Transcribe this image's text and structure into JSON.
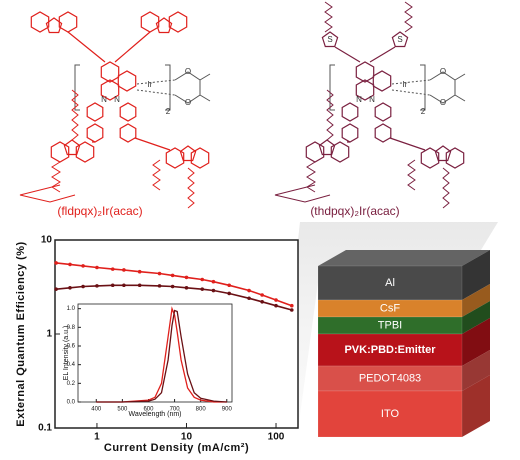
{
  "molecules": [
    {
      "name": "(fldpqx)₂Ir(acac)",
      "color": "#e0201c",
      "atoms": [
        "N",
        "N",
        "Ir",
        "O",
        "O",
        "2"
      ]
    },
    {
      "name": "(thdpqx)₂Ir(acac)",
      "color": "#7a2040",
      "atoms": [
        "N",
        "N",
        "Ir",
        "O",
        "O",
        "2",
        "S",
        "S"
      ]
    }
  ],
  "chart_data": [
    {
      "type": "line",
      "xlabel": "Current Density (mA/cm²)",
      "ylabel": "External Quantum Efficiency (%)",
      "xscale": "log",
      "yscale": "log",
      "xlim": [
        0.34,
        176
      ],
      "ylim": [
        0.1,
        10
      ],
      "xticks": [
        1,
        10,
        100
      ],
      "yticks": [
        0.1,
        1,
        10
      ],
      "markers": true,
      "x": [
        0.35,
        0.5,
        0.7,
        1,
        1.5,
        2,
        3,
        5,
        7,
        10,
        15,
        20,
        30,
        50,
        70,
        100,
        150
      ],
      "series": [
        {
          "color": "#e0201c",
          "values": [
            5.7,
            5.5,
            5.3,
            5.1,
            4.9,
            4.8,
            4.6,
            4.4,
            4.2,
            4.0,
            3.8,
            3.6,
            3.3,
            2.9,
            2.6,
            2.3,
            2.0
          ]
        },
        {
          "color": "#6a1014",
          "values": [
            3.0,
            3.1,
            3.2,
            3.25,
            3.3,
            3.3,
            3.3,
            3.25,
            3.2,
            3.1,
            3.0,
            2.9,
            2.7,
            2.4,
            2.2,
            2.0,
            1.8
          ]
        }
      ]
    },
    {
      "type": "line",
      "xlabel": "Wavelength (nm)",
      "ylabel": "EL Intensity (a.u.)",
      "xlim": [
        330,
        920
      ],
      "ylim": [
        0,
        1.05
      ],
      "xticks": [
        400,
        500,
        600,
        700,
        800,
        900
      ],
      "yticks": [
        {
          "value": 0,
          "label": "0.0"
        },
        {
          "value": 0.2,
          "label": "0.2"
        },
        {
          "value": 0.4,
          "label": "0.4"
        },
        {
          "value": 0.6,
          "label": "0.6"
        },
        {
          "value": 0.8,
          "label": "0.8"
        },
        {
          "value": 1,
          "label": "1.0"
        }
      ],
      "markers": false,
      "x": [
        400,
        500,
        600,
        625,
        650,
        675,
        690,
        700,
        710,
        725,
        750,
        775,
        800,
        850,
        900
      ],
      "series": [
        {
          "color": "#e0201c",
          "values": [
            0,
            0,
            0.02,
            0.05,
            0.2,
            0.7,
            1.0,
            0.93,
            0.75,
            0.45,
            0.15,
            0.05,
            0.02,
            0,
            0
          ]
        },
        {
          "color": "#6a1014",
          "values": [
            0,
            0,
            0.01,
            0.03,
            0.1,
            0.45,
            0.82,
            0.98,
            0.97,
            0.7,
            0.3,
            0.1,
            0.04,
            0.01,
            0
          ]
        }
      ]
    }
  ],
  "device": {
    "layers": [
      {
        "name": "Al",
        "color": "#4a4a4a"
      },
      {
        "name": "CsF",
        "color": "#d9822b"
      },
      {
        "name": "TPBI",
        "color": "#2f6e2a"
      },
      {
        "name": "PVK:PBD:Emitter",
        "color": "#b8121a"
      },
      {
        "name": "PEDOT4083",
        "color": "#d9504a"
      },
      {
        "name": "ITO",
        "color": "#e2443c"
      }
    ]
  }
}
